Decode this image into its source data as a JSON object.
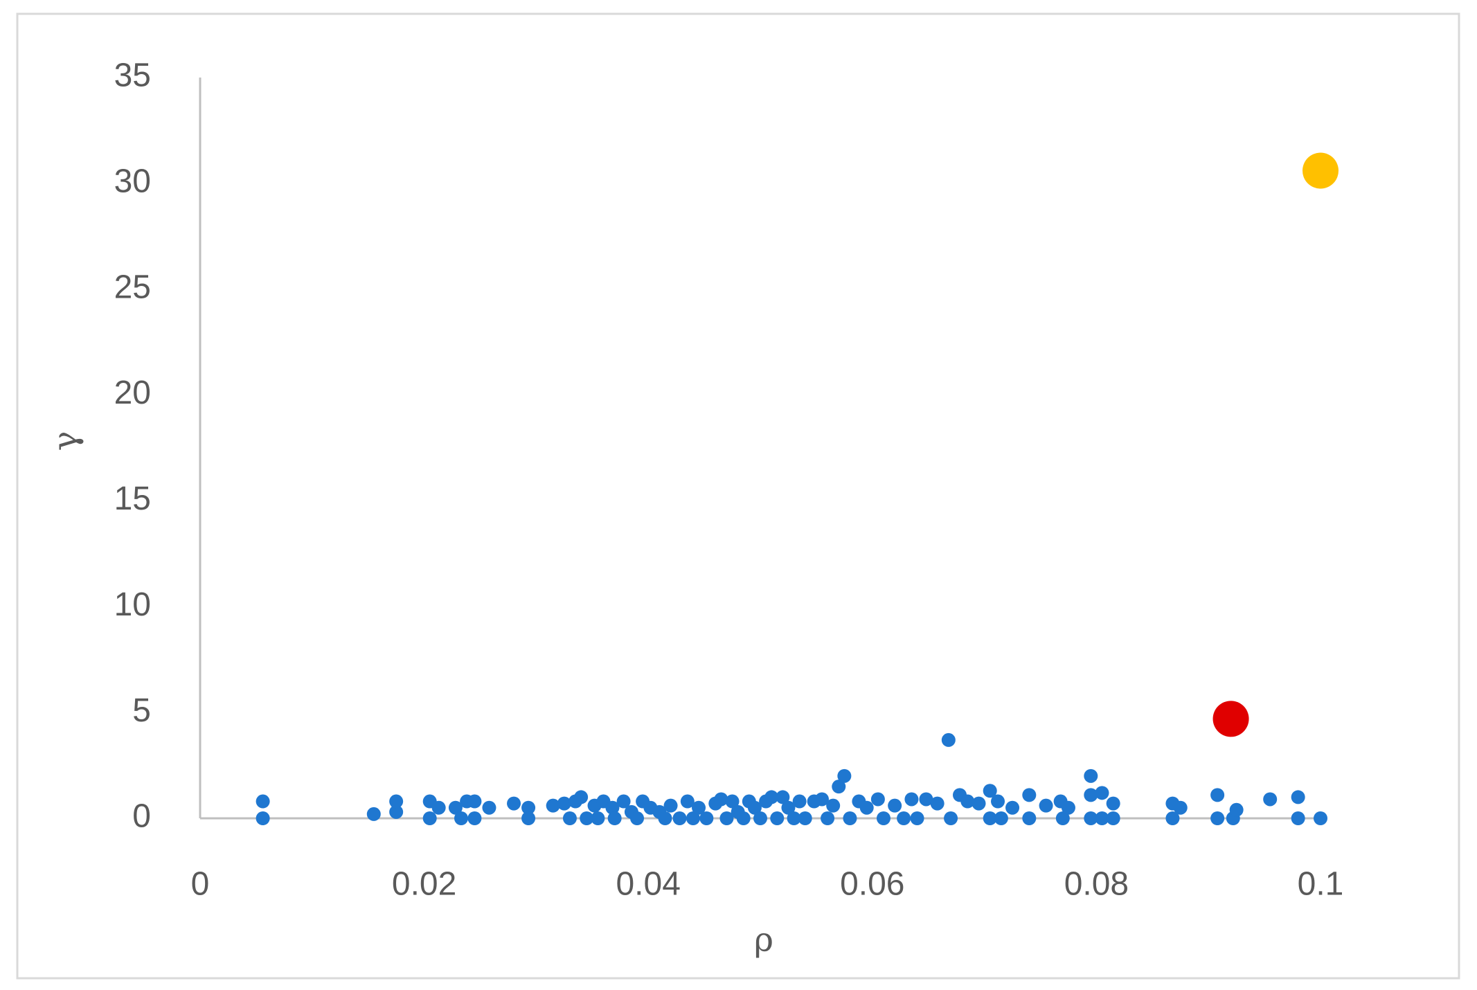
{
  "chart_data": {
    "type": "scatter",
    "x_label": "ρ",
    "y_label": "γ",
    "xlim": [
      0,
      0.1
    ],
    "xticks": [
      0,
      0.02,
      0.04,
      0.06,
      0.08,
      0.1
    ],
    "ylim": [
      0,
      35
    ],
    "yticks": [
      0,
      5,
      10,
      15,
      20,
      25,
      30,
      35
    ],
    "grid": false,
    "series": [
      {
        "color": "#1f77d0",
        "size": "small",
        "x": [
          0.0056,
          0.0056,
          0.0155,
          0.0175,
          0.0175,
          0.0205,
          0.0205,
          0.0213,
          0.0228,
          0.0233,
          0.0238,
          0.0245,
          0.0245,
          0.0258,
          0.028,
          0.0293,
          0.0293,
          0.0315,
          0.0325,
          0.033,
          0.0335,
          0.034,
          0.0345,
          0.0352,
          0.0355,
          0.036,
          0.0368,
          0.037,
          0.0378,
          0.0385,
          0.039,
          0.0395,
          0.0402,
          0.041,
          0.0415,
          0.042,
          0.0428,
          0.0435,
          0.044,
          0.0445,
          0.0452,
          0.046,
          0.0465,
          0.047,
          0.0475,
          0.048,
          0.0485,
          0.049,
          0.0495,
          0.05,
          0.0505,
          0.051,
          0.0515,
          0.052,
          0.0525,
          0.053,
          0.0535,
          0.054,
          0.0548,
          0.0555,
          0.056,
          0.0565,
          0.057,
          0.0575,
          0.058,
          0.0588,
          0.0595,
          0.0605,
          0.061,
          0.062,
          0.0628,
          0.0635,
          0.064,
          0.0648,
          0.0658,
          0.0668,
          0.067,
          0.0678,
          0.0685,
          0.0695,
          0.0705,
          0.0705,
          0.0712,
          0.0715,
          0.0725,
          0.074,
          0.074,
          0.0755,
          0.0768,
          0.077,
          0.0775,
          0.0795,
          0.0795,
          0.0795,
          0.0805,
          0.0805,
          0.0815,
          0.0815,
          0.0868,
          0.0868,
          0.0875,
          0.0908,
          0.0908,
          0.0922,
          0.0925,
          0.0955,
          0.098,
          0.098,
          0.1
        ],
        "values": [
          0.8,
          0,
          0.2,
          0.3,
          0.8,
          0.8,
          0,
          0.5,
          0.5,
          0,
          0.8,
          0.8,
          0,
          0.5,
          0.7,
          0.5,
          0,
          0.6,
          0.7,
          0,
          0.8,
          1.0,
          0,
          0.6,
          0,
          0.8,
          0.5,
          0,
          0.8,
          0.3,
          0,
          0.8,
          0.5,
          0.3,
          0,
          0.6,
          0,
          0.8,
          0,
          0.5,
          0,
          0.7,
          0.9,
          0,
          0.8,
          0.3,
          0,
          0.8,
          0.5,
          0,
          0.8,
          1.0,
          0,
          1.0,
          0.5,
          0,
          0.8,
          0,
          0.8,
          0.9,
          0,
          0.6,
          1.5,
          2.0,
          0,
          0.8,
          0.5,
          0.9,
          0,
          0.6,
          0,
          0.9,
          0,
          0.9,
          0.7,
          3.7,
          0,
          1.1,
          0.8,
          0.7,
          1.3,
          0,
          0.8,
          0,
          0.5,
          1.1,
          0,
          0.6,
          0.8,
          0,
          0.5,
          2.0,
          1.1,
          0,
          1.2,
          0,
          0.7,
          0,
          0.7,
          0,
          0.5,
          1.1,
          0,
          0,
          0.4,
          0.9,
          1.0,
          0,
          0
        ]
      },
      {
        "color": "#e00000",
        "size": "large",
        "x": [
          0.092
        ],
        "values": [
          4.7
        ]
      },
      {
        "color": "#ffc000",
        "size": "large",
        "x": [
          0.1
        ],
        "values": [
          30.6
        ]
      }
    ]
  }
}
